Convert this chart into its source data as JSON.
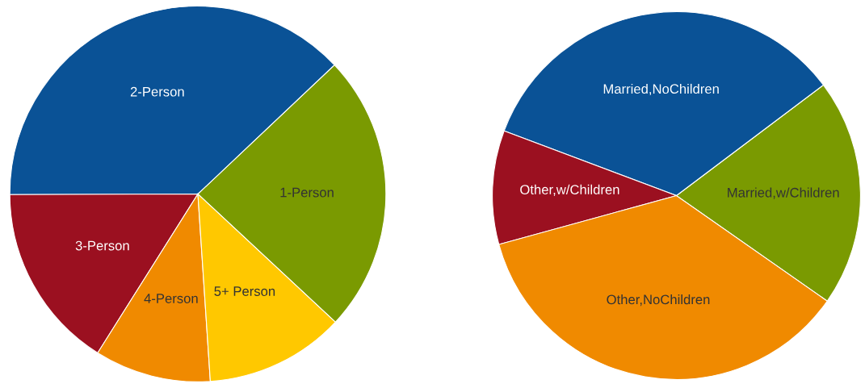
{
  "chart_data": [
    {
      "type": "pie",
      "categories": [
        "1-Person",
        "2-Person",
        "3-Person",
        "4-Person",
        "5+ Person"
      ],
      "values": [
        24,
        38,
        16,
        10,
        12
      ],
      "colors": [
        "#7a9a01",
        "#0a5296",
        "#9b1020",
        "#f08a00",
        "#ffc800"
      ]
    },
    {
      "type": "pie",
      "categories": [
        "Married,w/Children",
        "Married,NoChildren",
        "Other,w/Children",
        "Other,NoChildren"
      ],
      "values": [
        20,
        34,
        10,
        36
      ],
      "colors": [
        "#7a9a01",
        "#0a5296",
        "#9b1020",
        "#f08a00"
      ]
    }
  ]
}
